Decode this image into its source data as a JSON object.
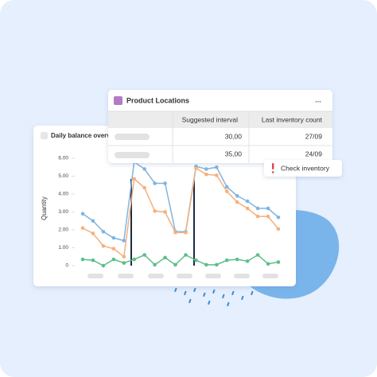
{
  "chart_data": {
    "type": "line",
    "title": "Daily balance overview",
    "y_label": "Quantity",
    "categories": [
      null,
      null,
      null,
      null,
      null,
      null,
      null,
      null,
      null,
      null,
      null,
      null,
      null,
      null,
      null,
      null,
      null,
      null,
      null,
      null
    ],
    "series": [
      {
        "color": "#7fb4e2",
        "values": [
          2.9,
          2.5,
          1.9,
          1.55,
          1.4,
          5.8,
          5.4,
          4.6,
          4.6,
          1.9,
          1.9,
          5.55,
          5.4,
          5.5,
          4.4,
          3.9,
          3.6,
          3.2,
          3.2,
          2.7
        ]
      },
      {
        "color": "#f5b07c",
        "values": [
          2.1,
          1.8,
          1.1,
          0.95,
          0.5,
          4.85,
          4.35,
          3.05,
          3.0,
          1.85,
          1.85,
          5.45,
          5.1,
          5.05,
          4.15,
          3.55,
          3.2,
          2.75,
          2.75,
          2.05
        ]
      },
      {
        "color": "#5cbf88",
        "values": [
          0.35,
          0.3,
          0.0,
          0.35,
          0.15,
          0.35,
          0.6,
          0.05,
          0.45,
          0.05,
          0.6,
          0.3,
          0.05,
          0.05,
          0.3,
          0.35,
          0.25,
          0.6,
          0.1,
          0.2
        ]
      }
    ],
    "ylim": [
      0,
      6
    ],
    "yticks": [
      0,
      {
        "value": 1,
        "label": "1.00"
      },
      {
        "value": 2,
        "label": "2.00"
      },
      {
        "value": 3,
        "label": "3.00"
      },
      {
        "value": 4,
        "label": "4.00"
      },
      {
        "value": 5,
        "label": "5.00"
      },
      {
        "value": 6,
        "label": "6.00"
      }
    ]
  },
  "table_card": {
    "title": "Product Locations",
    "menu": "...",
    "columns": [
      "Suggested interval",
      "Last inventory count"
    ],
    "rows": [
      [
        "30,00",
        "27/09"
      ],
      [
        "35,00",
        "24/09"
      ]
    ]
  },
  "button": {
    "label": "Check inventory"
  }
}
